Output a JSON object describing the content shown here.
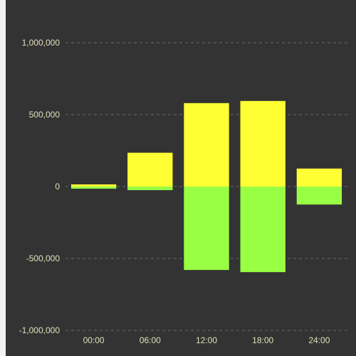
{
  "chart_data": {
    "type": "bar",
    "stacked": true,
    "categories": [
      "00:00",
      "06:00",
      "12:00",
      "18:00",
      "24:00"
    ],
    "series": [
      {
        "values": [
          15000,
          235000,
          580000,
          595000,
          125000
        ],
        "color": "#ffff33"
      },
      {
        "values": [
          -15000,
          -25000,
          -580000,
          -595000,
          -125000
        ],
        "color": "#99ff44"
      }
    ],
    "y_ticks": [
      {
        "value": 1000000,
        "label": "1,000,000"
      },
      {
        "value": 500000,
        "label": "500,000"
      },
      {
        "value": 0,
        "label": "0"
      },
      {
        "value": -500000,
        "label": "-500,000"
      },
      {
        "value": -1000000,
        "label": "-1,000,000"
      }
    ],
    "ylim": [
      -1000000,
      1000000
    ],
    "grid": true,
    "legend": "none",
    "colors": {
      "background": "#333333",
      "text": "#e0e0b8",
      "grid": "#6a6a6a"
    }
  }
}
